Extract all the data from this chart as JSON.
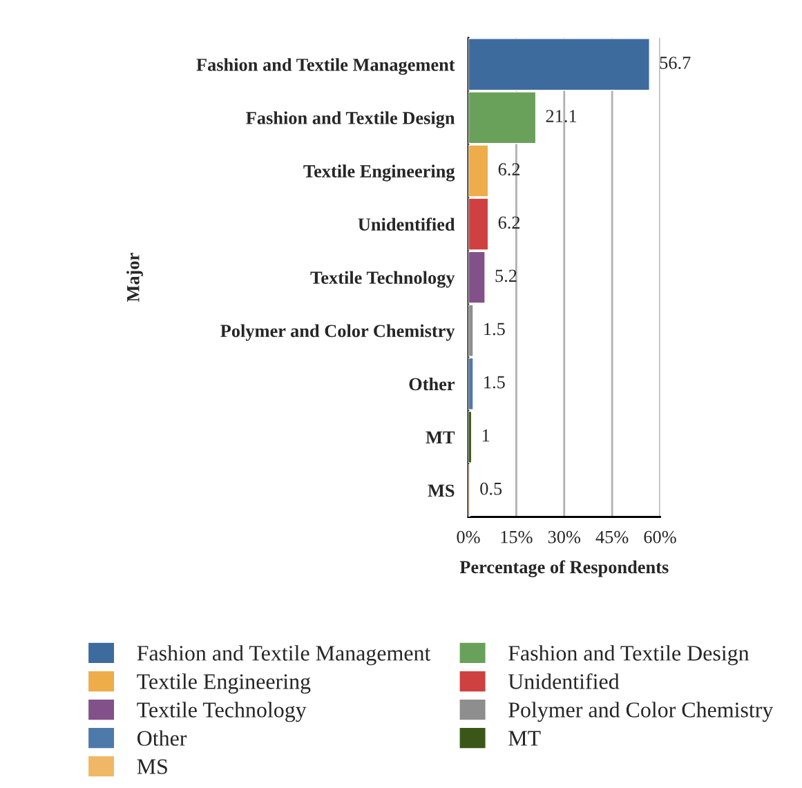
{
  "chart_data": {
    "type": "bar",
    "orientation": "horizontal",
    "xlabel": "Percentage of Respondents",
    "ylabel": "Major",
    "categories": [
      "Fashion and Textile Management",
      "Fashion and Textile Design",
      "Textile Engineering",
      "Unidentified",
      "Textile Technology",
      "Polymer and Color Chemistry",
      "Other",
      "MT",
      "MS"
    ],
    "series": [
      {
        "name": "Fashion and Textile Management",
        "color": "#3d6b9e",
        "values": [
          56.7,
          null,
          null,
          null,
          null,
          null,
          null,
          null,
          null
        ]
      },
      {
        "name": "Fashion and Textile Design",
        "color": "#6aa15a",
        "values": [
          null,
          21.1,
          null,
          null,
          null,
          null,
          null,
          null,
          null
        ]
      },
      {
        "name": "Textile Engineering",
        "color": "#eeac4b",
        "values": [
          null,
          null,
          6.2,
          null,
          null,
          null,
          null,
          null,
          null
        ]
      },
      {
        "name": "Unidentified",
        "color": "#cf4040",
        "values": [
          null,
          null,
          null,
          6.2,
          null,
          null,
          null,
          null,
          null
        ]
      },
      {
        "name": "Textile Technology",
        "color": "#825189",
        "values": [
          null,
          null,
          null,
          null,
          5.2,
          null,
          null,
          null,
          null
        ]
      },
      {
        "name": "Polymer and Color Chemistry",
        "color": "#8e8e8e",
        "values": [
          null,
          null,
          null,
          null,
          null,
          1.5,
          null,
          null,
          null
        ]
      },
      {
        "name": "Other",
        "color": "#4d7aab",
        "values": [
          null,
          null,
          null,
          null,
          null,
          null,
          1.5,
          null,
          null
        ]
      },
      {
        "name": "MT",
        "color": "#3a5718",
        "values": [
          null,
          null,
          null,
          null,
          null,
          null,
          null,
          1,
          null
        ]
      },
      {
        "name": "MS",
        "color": "#f0b866",
        "values": [
          null,
          null,
          null,
          null,
          null,
          null,
          null,
          null,
          0.5
        ]
      }
    ],
    "xlim": [
      0,
      60
    ],
    "xticks": [
      {
        "value": 0,
        "label": "0%"
      },
      {
        "value": 15,
        "label": "15%"
      },
      {
        "value": 30,
        "label": "30%"
      },
      {
        "value": 45,
        "label": "45%"
      },
      {
        "value": 60,
        "label": "60%"
      }
    ],
    "grid": "x",
    "data_labels": true,
    "legend": "bottom"
  }
}
